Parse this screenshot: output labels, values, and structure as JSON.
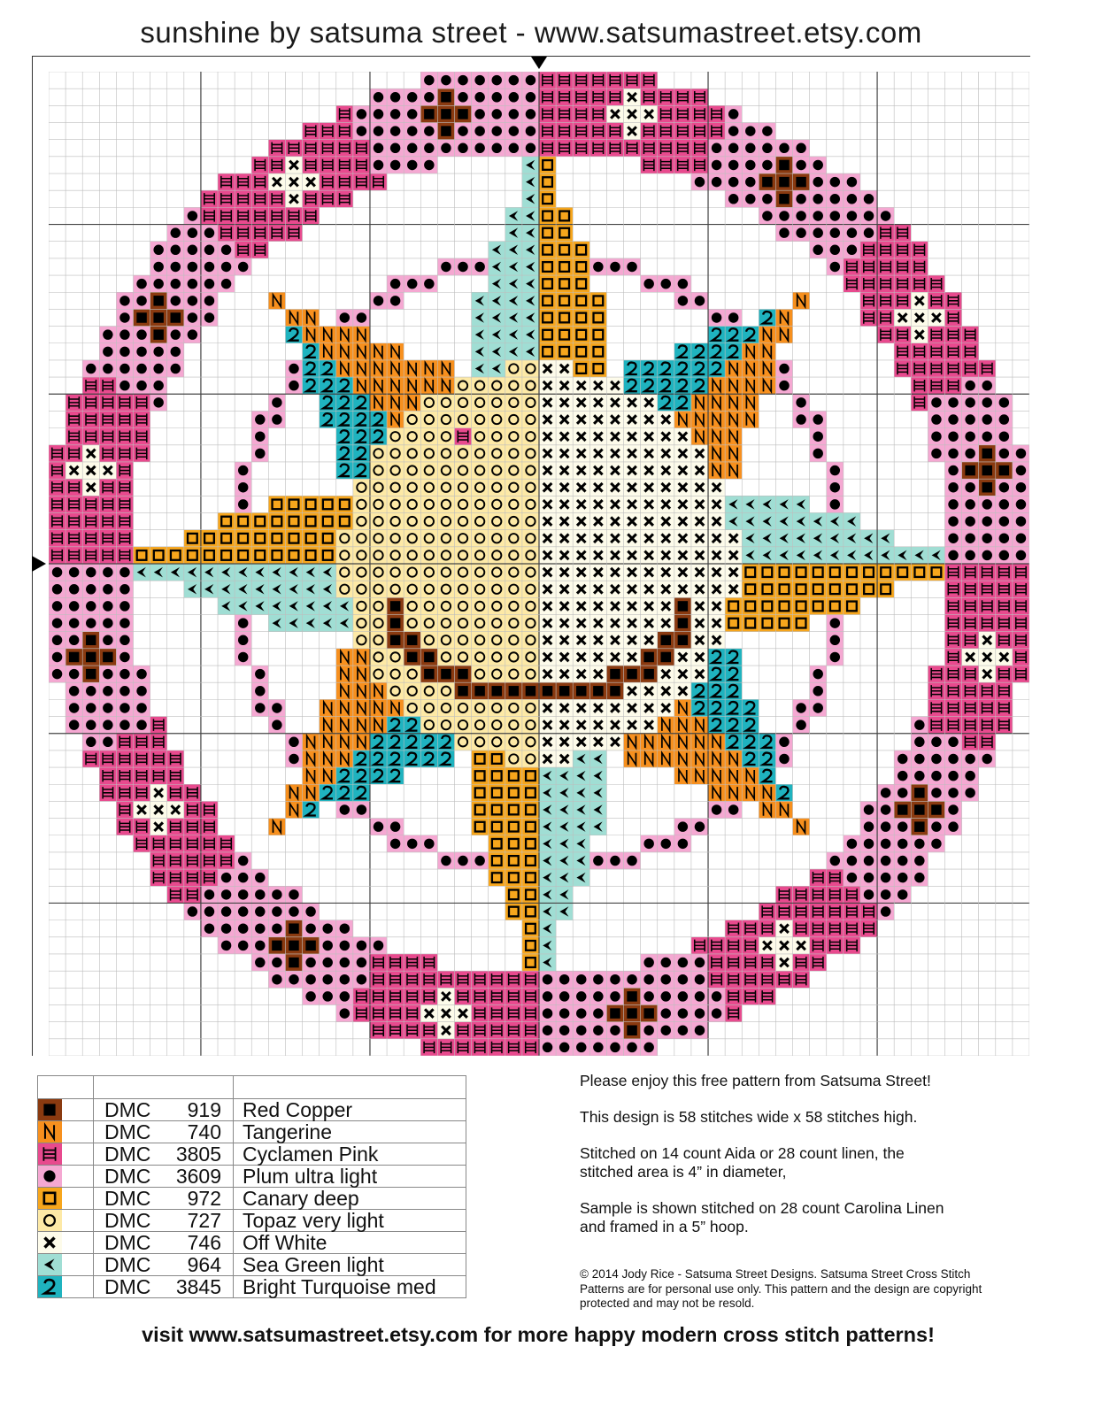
{
  "title": "sunshine by satsuma street - www.satsumastreet.etsy.com",
  "pattern": {
    "stitches_wide": 58,
    "stitches_high": 58
  },
  "colors": {
    "919": "#8a3a10",
    "740": "#f7901e",
    "3805": "#e84a8e",
    "3609": "#f5a8d2",
    "972": "#f7a61c",
    "727": "#fde9a6",
    "746": "#fdfbea",
    "964": "#a0ded4",
    "3845": "#1fb3bf",
    "grid": "#bdbdbd",
    "grid_major": "#444444"
  },
  "legend": [
    {
      "symbol": "filled-square",
      "brand": "DMC",
      "number": "919",
      "name": "Red Copper"
    },
    {
      "symbol": "letter-n",
      "brand": "DMC",
      "number": "740",
      "name": "Tangerine"
    },
    {
      "symbol": "h-bars",
      "brand": "DMC",
      "number": "3805",
      "name": "Cyclamen Pink"
    },
    {
      "symbol": "filled-circle",
      "brand": "DMC",
      "number": "3609",
      "name": "Plum ultra light"
    },
    {
      "symbol": "open-square",
      "brand": "DMC",
      "number": "972",
      "name": "Canary deep"
    },
    {
      "symbol": "open-circle",
      "brand": "DMC",
      "number": "727",
      "name": "Topaz very light"
    },
    {
      "symbol": "cross",
      "brand": "DMC",
      "number": "746",
      "name": "Off White"
    },
    {
      "symbol": "left-arrow",
      "brand": "DMC",
      "number": "964",
      "name": "Sea Green light"
    },
    {
      "symbol": "digit-2",
      "brand": "DMC",
      "number": "3845",
      "name": "Bright Turquoise med"
    }
  ],
  "info": {
    "line1": "Please enjoy this free pattern from Satsuma Street!",
    "line2": "This design is 58 stitches wide x 58 stitches high.",
    "line3a": "Stitched on 14 count Aida or 28 count linen, the",
    "line3b": "stitched area is 4” in diameter,",
    "line4a": "Sample is shown stitched on 28 count Carolina Linen",
    "line4b": "and framed in a 5” hoop.",
    "copyright_a": "© 2014 Jody Rice - Satsuma Street Designs. Satsuma Street Cross Stitch",
    "copyright_b": "Patterns are for personal use only. This pattern and the design are copyright",
    "copyright_c": "protected and may not be resold."
  },
  "footer": "visit www.satsumastreet.etsy.com for more happy modern cross stitch patterns!"
}
